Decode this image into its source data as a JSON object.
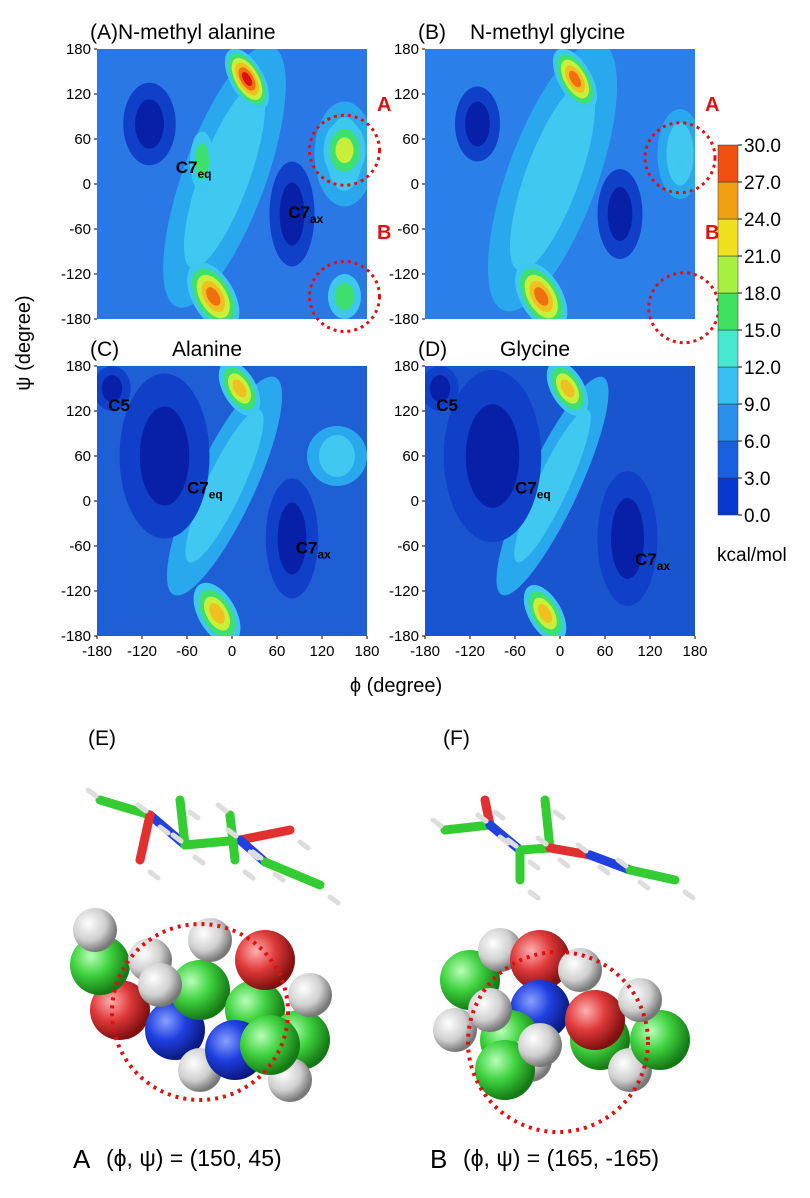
{
  "figure": {
    "ylabel": "ψ (degree)",
    "xlabel": "ϕ (degree)",
    "xlim": [
      -180,
      180
    ],
    "ylim": [
      -180,
      180
    ],
    "xticks": [
      -180,
      -120,
      -60,
      0,
      60,
      120,
      180
    ],
    "yticks": [
      -180,
      -120,
      -60,
      0,
      60,
      120,
      180
    ],
    "panels": [
      {
        "label": "(A)",
        "title": "N-methyl alanine",
        "annotations": [
          {
            "text": "C7",
            "sub": "eq"
          },
          {
            "text": "C7",
            "sub": "ax"
          }
        ],
        "markers": [
          "A",
          "B"
        ]
      },
      {
        "label": "(B)",
        "title": "N-methyl glycine",
        "annotations": [],
        "markers": [
          "A",
          "B"
        ]
      },
      {
        "label": "(C)",
        "title": "Alanine",
        "annotations": [
          {
            "text": "C5"
          },
          {
            "text": "C7",
            "sub": "eq"
          },
          {
            "text": "C7",
            "sub": "ax"
          }
        ],
        "markers": []
      },
      {
        "label": "(D)",
        "title": "Glycine",
        "annotations": [
          {
            "text": "C5"
          },
          {
            "text": "C7",
            "sub": "eq"
          },
          {
            "text": "C7",
            "sub": "ax"
          }
        ],
        "markers": []
      }
    ],
    "colorbar": {
      "lim": [
        0,
        30
      ],
      "ticks": [
        {
          "value": 0,
          "label": "0.0"
        },
        {
          "value": 3,
          "label": "3.0"
        },
        {
          "value": 6,
          "label": "6.0"
        },
        {
          "value": 9,
          "label": "9.0"
        },
        {
          "value": 12,
          "label": "12.0"
        },
        {
          "value": 15,
          "label": "15.0"
        },
        {
          "value": 18,
          "label": "18.0"
        },
        {
          "value": 21,
          "label": "21.0"
        },
        {
          "value": 24,
          "label": "24.0"
        },
        {
          "value": 27,
          "label": "27.0"
        },
        {
          "value": 30,
          "label": "30.0"
        }
      ],
      "unit": "kcal/mol"
    },
    "molecules": [
      {
        "label": "(E)",
        "letter": "A",
        "caption": "(ϕ, ψ) = (150, 45)"
      },
      {
        "label": "(F)",
        "letter": "B",
        "caption": "(ϕ, ψ) = (165, -165)"
      }
    ]
  }
}
